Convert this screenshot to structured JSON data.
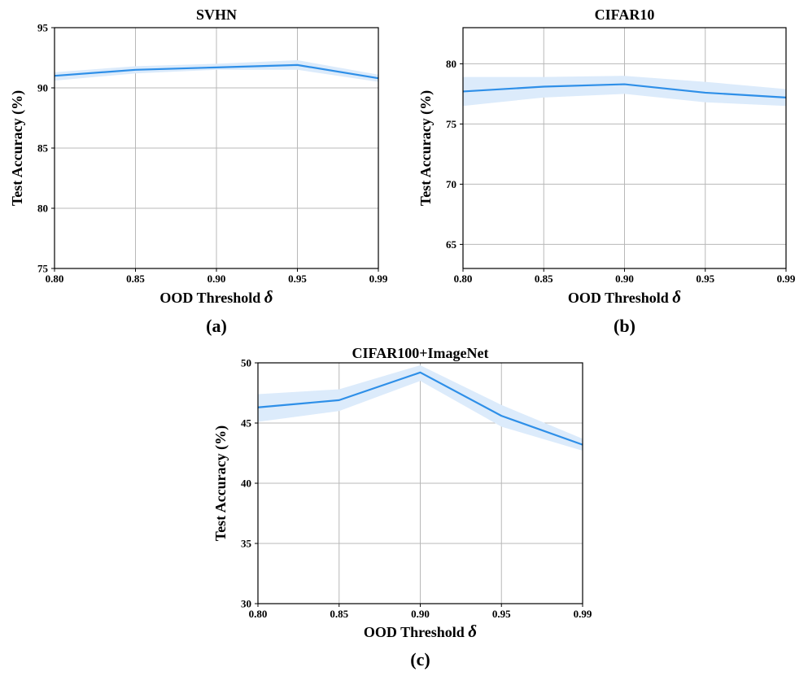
{
  "chart_data": [
    {
      "type": "line",
      "panel_label": "(a)",
      "title": "SVHN",
      "xlabel": "OOD Threshold",
      "xlabel_symbol": "δ",
      "ylabel": "Test Accuracy (%)",
      "categories": [
        "0.80",
        "0.85",
        "0.90",
        "0.95",
        "0.99"
      ],
      "yticks": [
        "75",
        "80",
        "85",
        "90",
        "95"
      ],
      "ylim": [
        75,
        95
      ],
      "grid": true,
      "color": "#2e8fe8",
      "band_color": "#dcebfb",
      "series": [
        {
          "values": [
            91.0,
            91.5,
            91.7,
            91.9,
            90.8
          ],
          "lower": [
            90.6,
            91.2,
            91.5,
            91.5,
            90.5
          ],
          "upper": [
            91.3,
            91.8,
            92.0,
            92.3,
            91.1
          ]
        }
      ]
    },
    {
      "type": "line",
      "panel_label": "(b)",
      "title": "CIFAR10",
      "xlabel": "OOD Threshold",
      "xlabel_symbol": "δ",
      "ylabel": "Test Accuracy (%)",
      "categories": [
        "0.80",
        "0.85",
        "0.90",
        "0.95",
        "0.99"
      ],
      "yticks": [
        "65",
        "70",
        "75",
        "80"
      ],
      "ylim": [
        63,
        83
      ],
      "grid": true,
      "color": "#2e8fe8",
      "band_color": "#dcebfb",
      "series": [
        {
          "values": [
            77.7,
            78.1,
            78.3,
            77.6,
            77.2
          ],
          "lower": [
            76.5,
            77.2,
            77.5,
            76.8,
            76.5
          ],
          "upper": [
            78.9,
            78.9,
            79.0,
            78.5,
            77.9
          ]
        }
      ]
    },
    {
      "type": "line",
      "panel_label": "(c)",
      "title": "CIFAR100+ImageNet",
      "xlabel": "OOD Threshold",
      "xlabel_symbol": "δ",
      "ylabel": "Test Accuracy (%)",
      "categories": [
        "0.80",
        "0.85",
        "0.90",
        "0.95",
        "0.99"
      ],
      "yticks": [
        "30",
        "35",
        "40",
        "45",
        "50"
      ],
      "ylim": [
        30,
        50
      ],
      "grid": true,
      "color": "#2e8fe8",
      "band_color": "#dcebfb",
      "series": [
        {
          "values": [
            46.3,
            46.9,
            49.2,
            45.6,
            43.2
          ],
          "lower": [
            45.1,
            46.0,
            48.5,
            44.7,
            42.7
          ],
          "upper": [
            47.4,
            47.8,
            49.8,
            46.5,
            43.7
          ]
        }
      ]
    }
  ]
}
